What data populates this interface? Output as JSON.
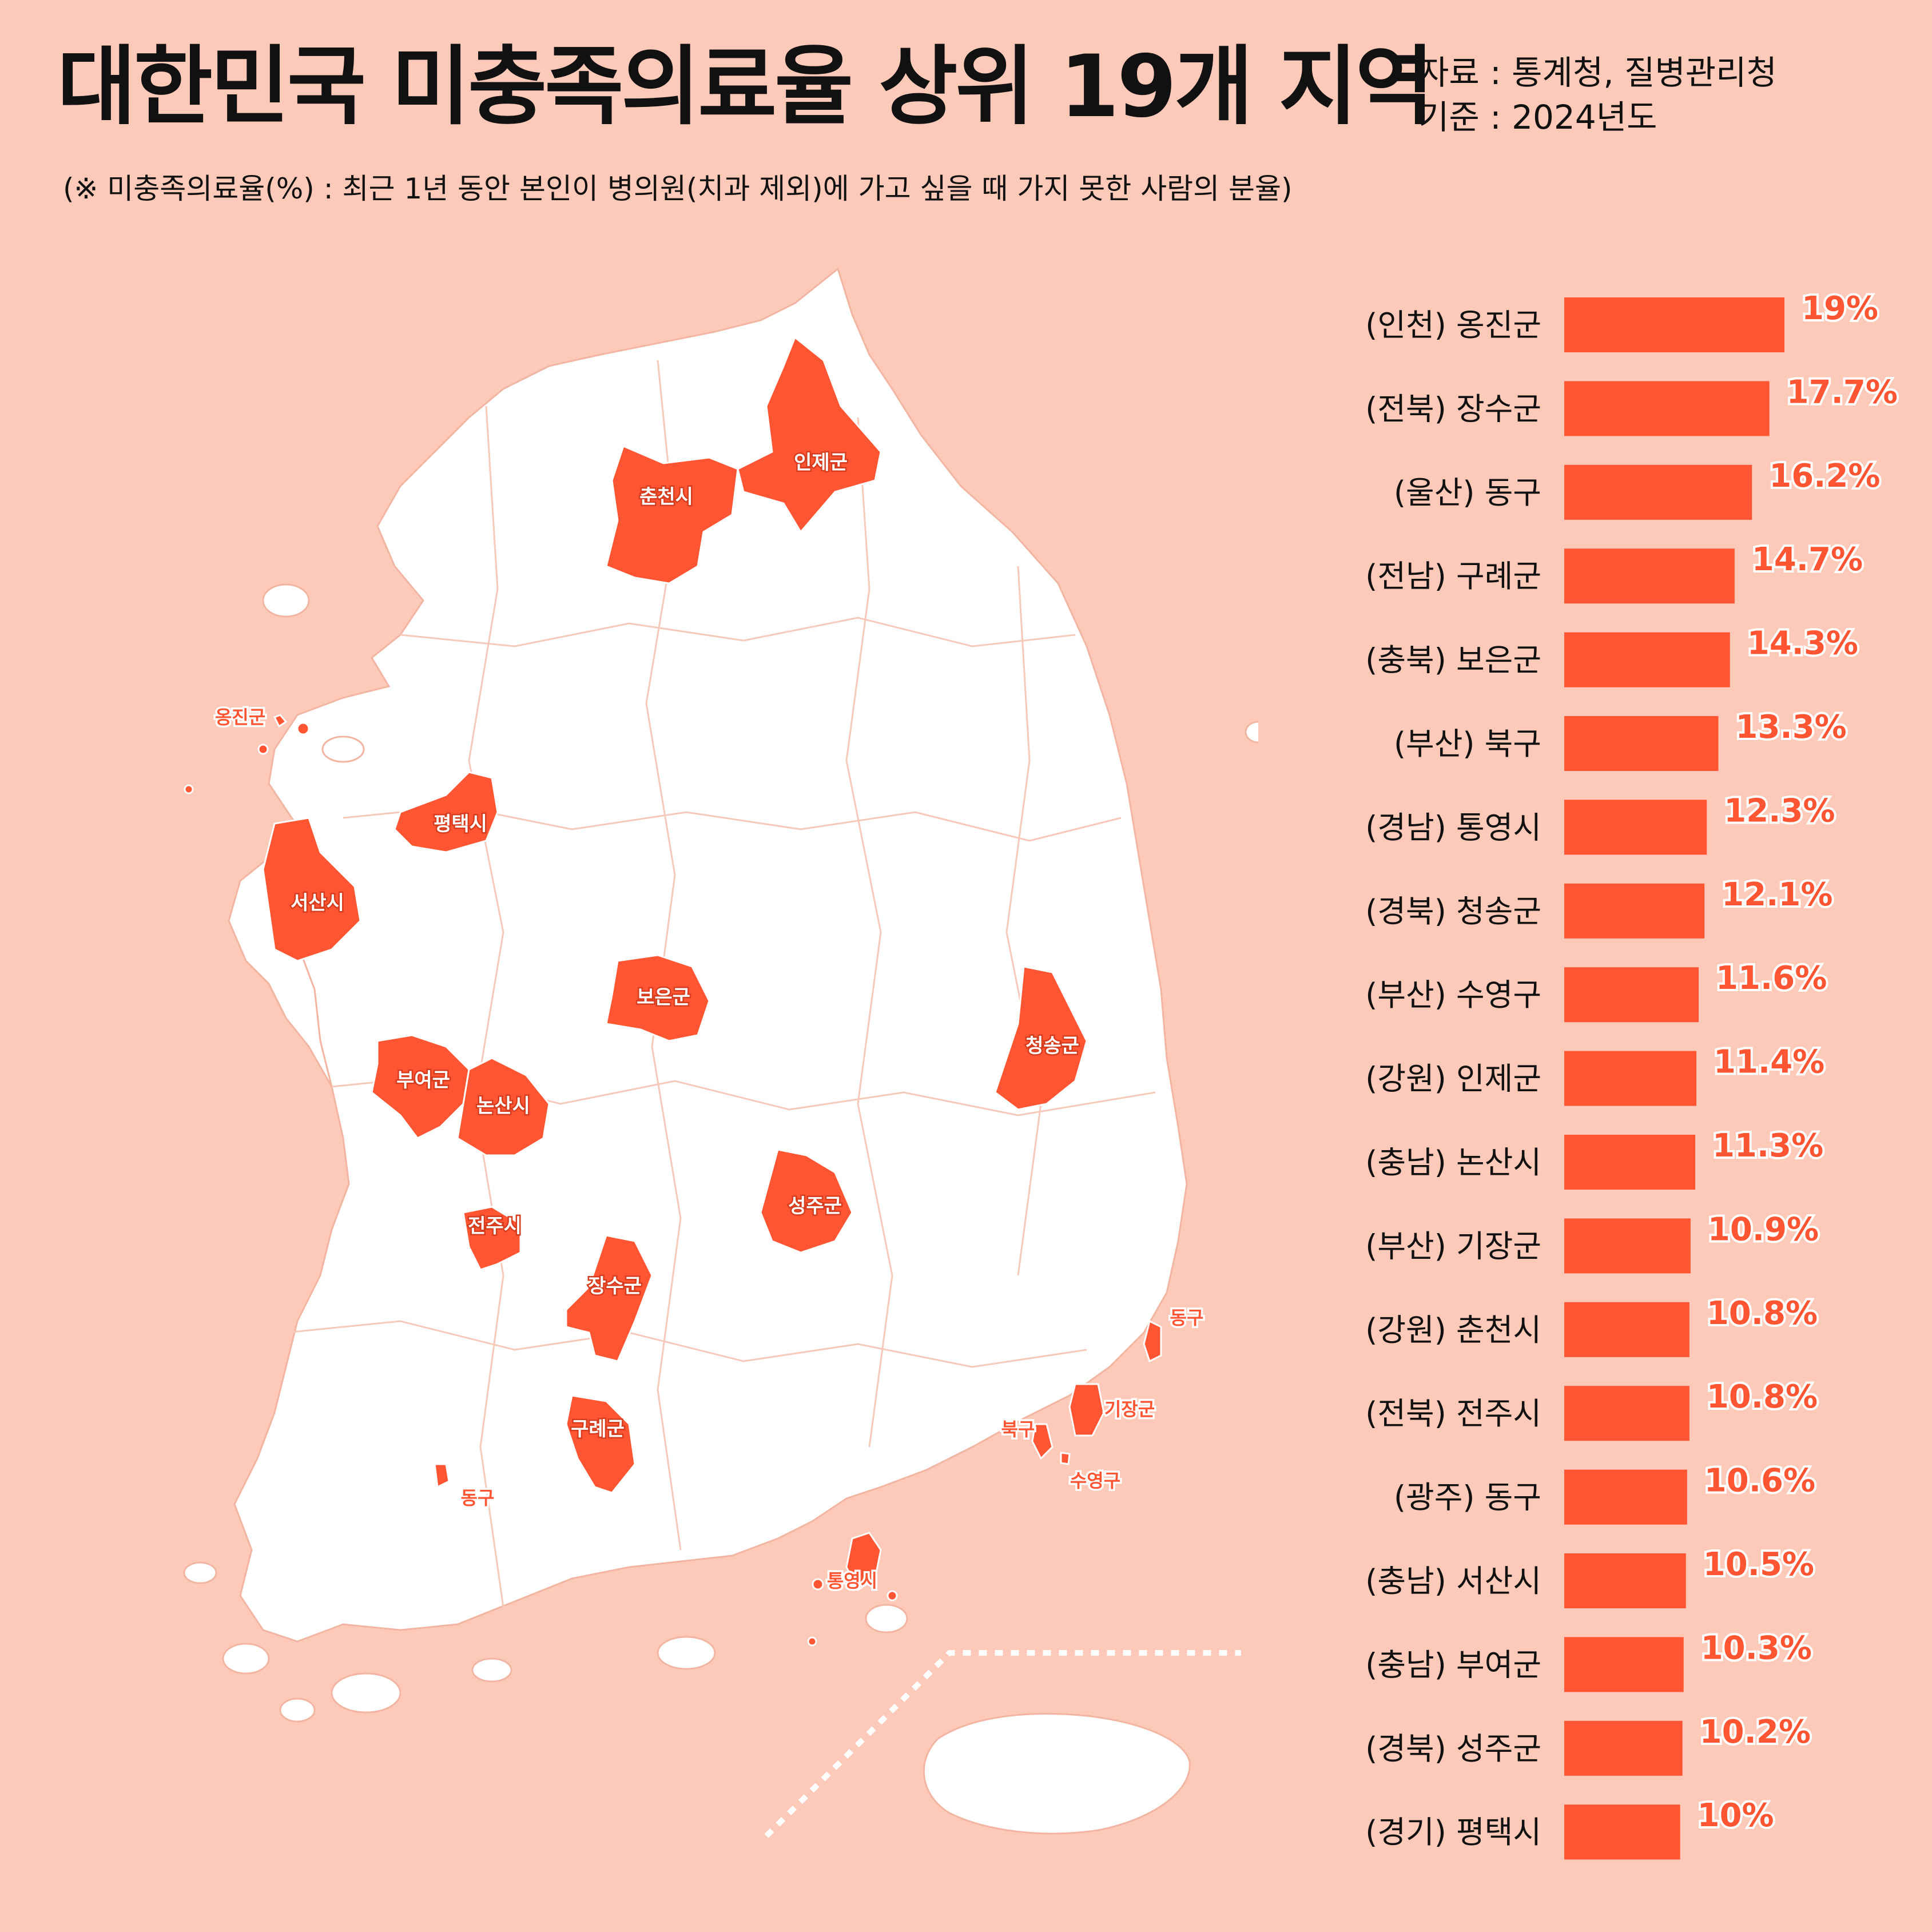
{
  "header": {
    "title": "대한민국 미충족의료율 상위 19개 지역",
    "source_line": "자료 : 통계청, 질병관리청",
    "base_line": "기준 : 2024년도",
    "note": "(※ 미충족의료율(%) : 최근 1년 동안 본인이 병의원(치과 제외)에 가고 싶을 때 가지 못한 사람의 분율)"
  },
  "map": {
    "labels_inside": [
      "춘천시",
      "인제군",
      "평택시",
      "서산시",
      "보은군",
      "청송군",
      "부여군",
      "논산시",
      "성주군",
      "전주시",
      "장수군",
      "구례군"
    ],
    "labels_outside": [
      "옹진군",
      "동구",
      "북구",
      "기장군",
      "수영구",
      "동구",
      "통영시"
    ]
  },
  "colors": {
    "accent": "#ff5533",
    "background": "#fdc9b9",
    "land": "#ffffff"
  },
  "chart_data": {
    "type": "bar",
    "orientation": "horizontal",
    "categories": [
      "(인천) 옹진군",
      "(전북) 장수군",
      "(울산) 동구",
      "(전남) 구례군",
      "(충북) 보은군",
      "(부산) 북구",
      "(경남) 통영시",
      "(경북) 청송군",
      "(부산) 수영구",
      "(강원) 인제군",
      "(충남) 논산시",
      "(부산) 기장군",
      "(강원) 춘천시",
      "(전북) 전주시",
      "(광주) 동구",
      "(충남) 서산시",
      "(충남) 부여군",
      "(경북) 성주군",
      "(경기) 평택시"
    ],
    "values": [
      19,
      17.7,
      16.2,
      14.7,
      14.3,
      13.3,
      12.3,
      12.1,
      11.6,
      11.4,
      11.3,
      10.9,
      10.8,
      10.8,
      10.6,
      10.5,
      10.3,
      10.2,
      10
    ],
    "value_labels": [
      "19%",
      "17.7%",
      "16.2%",
      "14.7%",
      "14.3%",
      "13.3%",
      "12.3%",
      "12.1%",
      "11.6%",
      "11.4%",
      "11.3%",
      "10.9%",
      "10.8%",
      "10.8%",
      "10.6%",
      "10.5%",
      "10.3%",
      "10.2%",
      "10%"
    ],
    "unit": "%",
    "title": "",
    "xlabel": "",
    "ylabel": ""
  }
}
